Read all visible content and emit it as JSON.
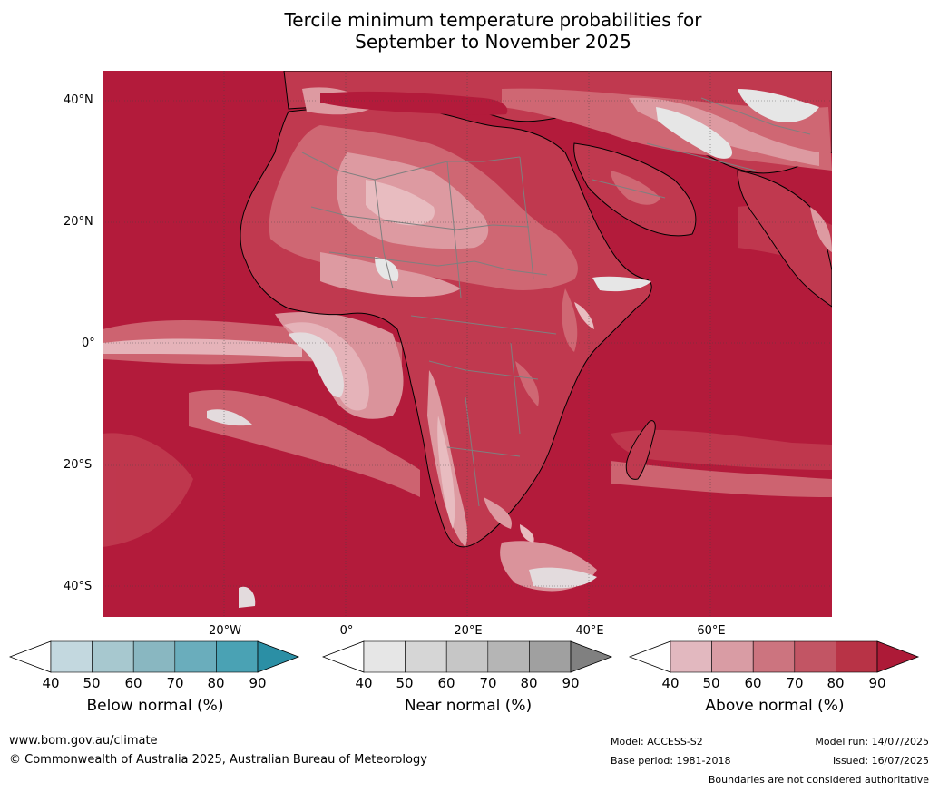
{
  "title": {
    "line1": "Tercile minimum temperature probabilities for",
    "line2": "September to November 2025"
  },
  "map": {
    "lat_labels": [
      "40°N",
      "20°N",
      "0°",
      "20°S",
      "40°S"
    ],
    "lon_labels": [
      "20°W",
      "0°",
      "20°E",
      "40°E",
      "60°E"
    ],
    "colors": {
      "above_90": "#b31b3b",
      "above_80": "#c0394f",
      "above_70": "#cf6773",
      "above_60": "#dd9aa1",
      "above_50": "#e8bcc0",
      "near_40": "#e6e6e6",
      "ocean": "#b31b3b",
      "coastline": "#000000",
      "borders": "#7f7f7f",
      "grid": "#444444"
    }
  },
  "colorbars": [
    {
      "title": "Below normal (%)",
      "ticks": [
        "40",
        "50",
        "60",
        "70",
        "80",
        "90"
      ],
      "colors": [
        "#ffffff",
        "#c3d8df",
        "#a7c8cf",
        "#89b7c1",
        "#6aadbc",
        "#4aa2b4",
        "#2b8fa5"
      ]
    },
    {
      "title": "Near normal (%)",
      "ticks": [
        "40",
        "50",
        "60",
        "70",
        "80",
        "90"
      ],
      "colors": [
        "#ffffff",
        "#e6e6e6",
        "#d6d6d6",
        "#c6c6c6",
        "#b5b5b5",
        "#a0a0a0",
        "#808080"
      ]
    },
    {
      "title": "Above normal (%)",
      "ticks": [
        "40",
        "50",
        "60",
        "70",
        "80",
        "90"
      ],
      "colors": [
        "#ffffff",
        "#e2b8bf",
        "#d99ca4",
        "#cc747f",
        "#c25564",
        "#b83346",
        "#ad1a37"
      ]
    }
  ],
  "footer": {
    "url": "www.bom.gov.au/climate",
    "copyright": "© Commonwealth of Australia 2025, Australian Bureau of Meteorology",
    "model": "Model: ACCESS-S2",
    "base_period": "Base period: 1981-2018",
    "model_run": "Model run: 14/07/2025",
    "issued": "Issued: 16/07/2025",
    "disclaimer": "Boundaries are not considered authoritative"
  }
}
